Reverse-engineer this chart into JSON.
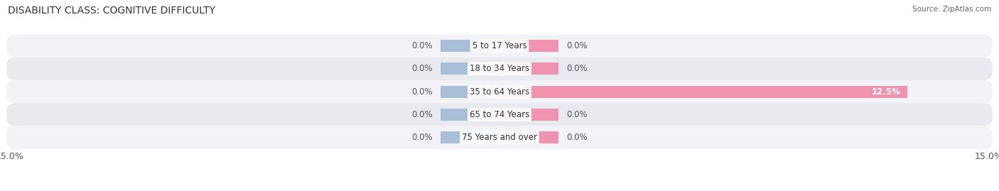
{
  "title": "DISABILITY CLASS: COGNITIVE DIFFICULTY",
  "source": "Source: ZipAtlas.com",
  "categories": [
    "5 to 17 Years",
    "18 to 34 Years",
    "35 to 64 Years",
    "65 to 74 Years",
    "75 Years and over"
  ],
  "male_values": [
    0.0,
    0.0,
    0.0,
    0.0,
    0.0
  ],
  "female_values": [
    0.0,
    0.0,
    12.5,
    0.0,
    0.0
  ],
  "max_val": 15.0,
  "male_color": "#a8bfd8",
  "female_color": "#f093b0",
  "row_colors": [
    "#f2f2f7",
    "#e9e9f0"
  ],
  "title_fontsize": 10,
  "label_fontsize": 8.5,
  "tick_fontsize": 9,
  "bar_height": 0.52,
  "stub_size": 1.8,
  "background_color": "#ffffff",
  "value_label_color": "#555555",
  "category_label_color": "#333333",
  "inline_label_color": "#ffffff"
}
